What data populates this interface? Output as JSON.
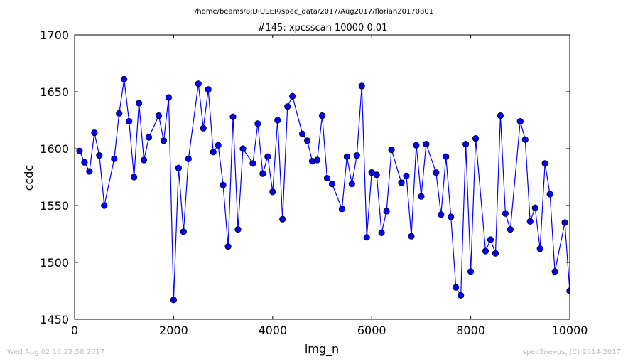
{
  "suptitle": "/home/beams/8IDIUSER/spec_data/2017/Aug2017/florian20170801",
  "footer_left": "Wed Aug 02 13:22:58 2017",
  "footer_right": "spec2nexus, (C) 2014-2017",
  "chart_data": {
    "type": "line",
    "title": "#145: xpcsscan 10000 0.01",
    "xlabel": "img_n",
    "ylabel": "ccdc",
    "xlim": [
      0,
      10000
    ],
    "ylim": [
      1450,
      1700
    ],
    "xticks": [
      0,
      2000,
      4000,
      6000,
      8000,
      10000
    ],
    "yticks": [
      1450,
      1500,
      1550,
      1600,
      1650,
      1700
    ],
    "xtick_labels": [
      "0",
      "2000",
      "4000",
      "6000",
      "8000",
      "10000"
    ],
    "ytick_labels": [
      "1450",
      "1500",
      "1550",
      "1600",
      "1650",
      "1700"
    ],
    "grid": false,
    "legend": "none",
    "line_color": "#0000ff",
    "marker": "circle",
    "series": [
      {
        "x": [
          100,
          200,
          300,
          400,
          500,
          600,
          800,
          900,
          1000,
          1100,
          1200,
          1300,
          1400,
          1500,
          1700,
          1800,
          1900,
          2000,
          2100,
          2200,
          2300,
          2500,
          2600,
          2700,
          2800,
          2900,
          3000,
          3100,
          3200,
          3300,
          3400,
          3600,
          3700,
          3800,
          3900,
          4000,
          4100,
          4200,
          4300,
          4400,
          4600,
          4700,
          4800,
          4900,
          5000,
          5100,
          5200,
          5400,
          5500,
          5600,
          5700,
          5800,
          5900,
          6000,
          6100,
          6200,
          6300,
          6400,
          6600,
          6700,
          6800,
          6900,
          7000,
          7100,
          7300,
          7400,
          7500,
          7600,
          7700,
          7800,
          7900,
          8000,
          8100,
          8300,
          8400,
          8500,
          8600,
          8700,
          8800,
          9000,
          9100,
          9200,
          9300,
          9400,
          9500,
          9600,
          9700,
          9900,
          10000,
          10000
        ],
        "y": [
          1598,
          1588,
          1580,
          1614,
          1594,
          1550,
          1591,
          1631,
          1661,
          1624,
          1575,
          1640,
          1590,
          1610,
          1629,
          1607,
          1645,
          1467,
          1583,
          1527,
          1591,
          1657,
          1618,
          1652,
          1597,
          1603,
          1568,
          1514,
          1628,
          1529,
          1600,
          1587,
          1622,
          1578,
          1593,
          1562,
          1625,
          1538,
          1637,
          1646,
          1613,
          1607,
          1589,
          1590,
          1629,
          1574,
          1569,
          1547,
          1593,
          1569,
          1594,
          1655,
          1522,
          1579,
          1577,
          1526,
          1545,
          1599,
          1570,
          1576,
          1523,
          1603,
          1558,
          1604,
          1579,
          1542,
          1593,
          1540,
          1478,
          1471,
          1604,
          1492,
          1609,
          1510,
          1520,
          1508,
          1629,
          1543,
          1529,
          1624,
          1608,
          1536,
          1548,
          1512,
          1587,
          1560,
          1492,
          1535,
          1475,
          1475
        ]
      }
    ]
  }
}
